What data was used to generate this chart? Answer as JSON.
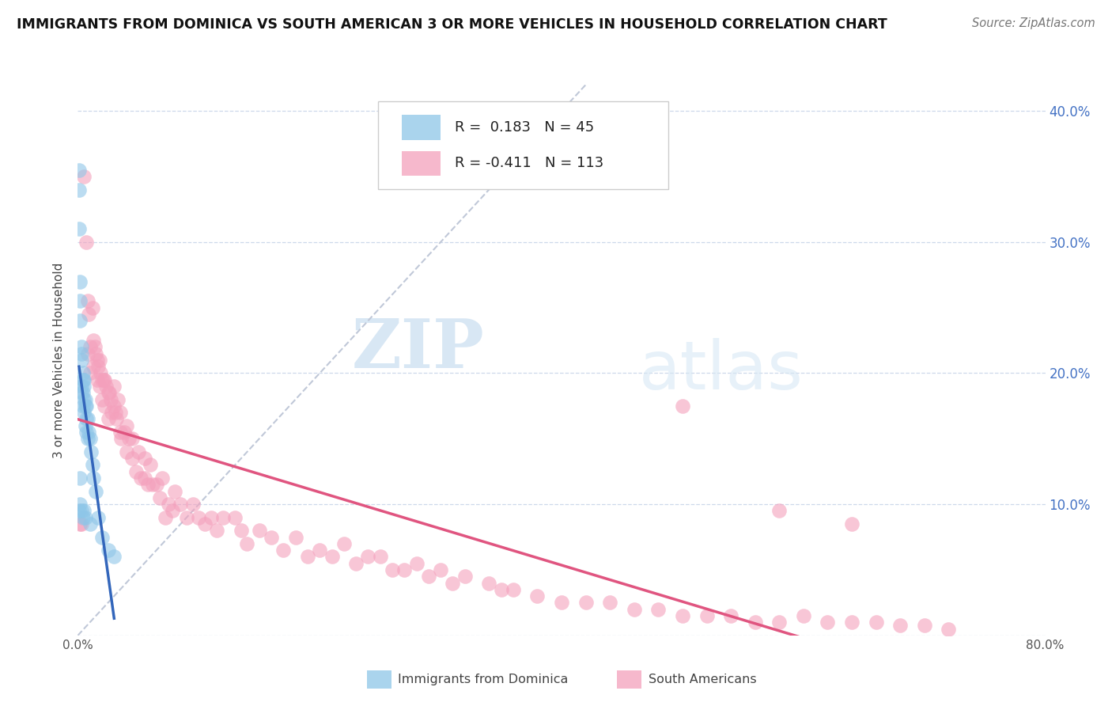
{
  "title": "IMMIGRANTS FROM DOMINICA VS SOUTH AMERICAN 3 OR MORE VEHICLES IN HOUSEHOLD CORRELATION CHART",
  "source": "Source: ZipAtlas.com",
  "ylabel": "3 or more Vehicles in Household",
  "xlim": [
    0.0,
    0.8
  ],
  "ylim": [
    0.0,
    0.42
  ],
  "yticks_right": [
    0.0,
    0.1,
    0.2,
    0.3,
    0.4
  ],
  "yticklabels_right": [
    "",
    "10.0%",
    "20.0%",
    "30.0%",
    "40.0%"
  ],
  "legend1_label": "Immigrants from Dominica",
  "legend2_label": "South Americans",
  "R1": 0.183,
  "N1": 45,
  "R2": -0.411,
  "N2": 113,
  "blue_color": "#8ec6e8",
  "pink_color": "#f4a0bc",
  "blue_line_color": "#3366bb",
  "pink_line_color": "#e05580",
  "diagonal_color": "#c0c8d8",
  "watermark_zip": "ZIP",
  "watermark_atlas": "atlas",
  "blue_scatter_x": [
    0.001,
    0.001,
    0.001,
    0.001,
    0.002,
    0.002,
    0.002,
    0.002,
    0.002,
    0.003,
    0.003,
    0.003,
    0.003,
    0.003,
    0.003,
    0.004,
    0.004,
    0.004,
    0.004,
    0.004,
    0.005,
    0.005,
    0.005,
    0.005,
    0.005,
    0.006,
    0.006,
    0.006,
    0.006,
    0.007,
    0.007,
    0.007,
    0.008,
    0.008,
    0.009,
    0.01,
    0.01,
    0.011,
    0.012,
    0.013,
    0.015,
    0.017,
    0.02,
    0.025,
    0.03
  ],
  "blue_scatter_y": [
    0.355,
    0.34,
    0.31,
    0.095,
    0.27,
    0.255,
    0.24,
    0.12,
    0.1,
    0.22,
    0.215,
    0.21,
    0.19,
    0.185,
    0.095,
    0.2,
    0.195,
    0.185,
    0.175,
    0.09,
    0.195,
    0.19,
    0.18,
    0.17,
    0.095,
    0.18,
    0.175,
    0.16,
    0.09,
    0.175,
    0.165,
    0.155,
    0.165,
    0.15,
    0.155,
    0.15,
    0.085,
    0.14,
    0.13,
    0.12,
    0.11,
    0.09,
    0.075,
    0.065,
    0.06
  ],
  "pink_scatter_x": [
    0.002,
    0.003,
    0.005,
    0.007,
    0.008,
    0.008,
    0.009,
    0.01,
    0.01,
    0.012,
    0.013,
    0.013,
    0.014,
    0.015,
    0.016,
    0.016,
    0.017,
    0.018,
    0.018,
    0.019,
    0.02,
    0.02,
    0.021,
    0.022,
    0.022,
    0.023,
    0.025,
    0.025,
    0.026,
    0.027,
    0.028,
    0.03,
    0.03,
    0.031,
    0.032,
    0.033,
    0.035,
    0.035,
    0.036,
    0.038,
    0.04,
    0.04,
    0.042,
    0.045,
    0.045,
    0.048,
    0.05,
    0.052,
    0.055,
    0.055,
    0.058,
    0.06,
    0.062,
    0.065,
    0.068,
    0.07,
    0.072,
    0.075,
    0.078,
    0.08,
    0.085,
    0.09,
    0.095,
    0.1,
    0.105,
    0.11,
    0.115,
    0.12,
    0.13,
    0.135,
    0.14,
    0.15,
    0.16,
    0.17,
    0.18,
    0.19,
    0.2,
    0.21,
    0.22,
    0.23,
    0.24,
    0.25,
    0.26,
    0.27,
    0.28,
    0.29,
    0.3,
    0.31,
    0.32,
    0.34,
    0.35,
    0.36,
    0.38,
    0.4,
    0.42,
    0.44,
    0.46,
    0.48,
    0.5,
    0.52,
    0.54,
    0.56,
    0.58,
    0.6,
    0.62,
    0.64,
    0.66,
    0.68,
    0.7,
    0.72,
    0.5,
    0.58,
    0.64
  ],
  "pink_scatter_y": [
    0.085,
    0.085,
    0.35,
    0.3,
    0.255,
    0.215,
    0.245,
    0.22,
    0.2,
    0.25,
    0.225,
    0.205,
    0.22,
    0.215,
    0.21,
    0.195,
    0.205,
    0.21,
    0.19,
    0.2,
    0.195,
    0.18,
    0.195,
    0.195,
    0.175,
    0.19,
    0.185,
    0.165,
    0.185,
    0.18,
    0.17,
    0.175,
    0.19,
    0.17,
    0.165,
    0.18,
    0.17,
    0.155,
    0.15,
    0.155,
    0.16,
    0.14,
    0.15,
    0.135,
    0.15,
    0.125,
    0.14,
    0.12,
    0.135,
    0.12,
    0.115,
    0.13,
    0.115,
    0.115,
    0.105,
    0.12,
    0.09,
    0.1,
    0.095,
    0.11,
    0.1,
    0.09,
    0.1,
    0.09,
    0.085,
    0.09,
    0.08,
    0.09,
    0.09,
    0.08,
    0.07,
    0.08,
    0.075,
    0.065,
    0.075,
    0.06,
    0.065,
    0.06,
    0.07,
    0.055,
    0.06,
    0.06,
    0.05,
    0.05,
    0.055,
    0.045,
    0.05,
    0.04,
    0.045,
    0.04,
    0.035,
    0.035,
    0.03,
    0.025,
    0.025,
    0.025,
    0.02,
    0.02,
    0.015,
    0.015,
    0.015,
    0.01,
    0.01,
    0.015,
    0.01,
    0.01,
    0.01,
    0.008,
    0.008,
    0.005,
    0.175,
    0.095,
    0.085
  ]
}
